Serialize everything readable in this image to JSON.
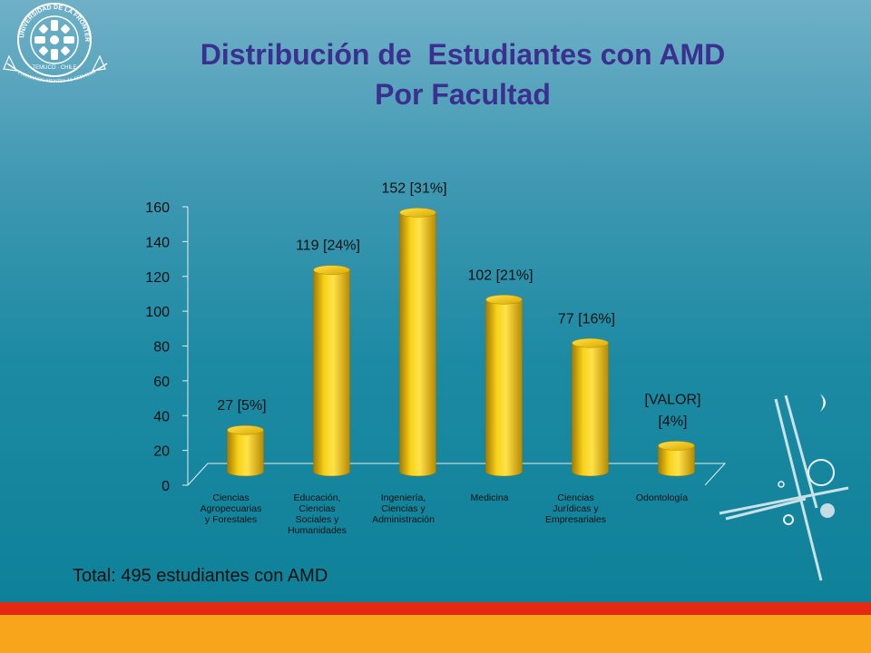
{
  "slide": {
    "title_line1": "Distribución de  Estudiantes con AMD",
    "title_line2": "Por Facultad",
    "total_text": "Total: 495 estudiantes con AMD",
    "logo_text_top": "UNIVERSIDAD DE LA FRONTERA",
    "logo_text_center": "TEMUCO · CHILE",
    "logo_text_bottom": "FORMANDO MENTES AL SERVICIO"
  },
  "colors": {
    "title": "#3b2f8f",
    "bar": "#f2c200",
    "footer_red": "#e52a12",
    "footer_orange": "#f8a51b"
  },
  "chart_data": {
    "type": "bar",
    "title": "",
    "xlabel": "",
    "ylabel": "",
    "ylim": [
      0,
      160
    ],
    "yticks": [
      0,
      20,
      40,
      60,
      80,
      100,
      120,
      140,
      160
    ],
    "categories": [
      [
        "Ciencias",
        "Agropecuarias",
        "y Forestales"
      ],
      [
        "Educación,",
        "Ciencias",
        "Sociales y",
        "Humanidades"
      ],
      [
        "Ingeniería,",
        "Ciencias y",
        "Administración"
      ],
      [
        "Medicina"
      ],
      [
        "Ciencias",
        "Jurídicas y",
        "Empresariales"
      ],
      [
        "Odontología"
      ]
    ],
    "values": [
      27,
      119,
      152,
      102,
      77,
      18
    ],
    "data_labels": [
      [
        "27 [5%]"
      ],
      [
        "119 [24%]"
      ],
      [
        "152 [31%]"
      ],
      [
        "102 [21%]"
      ],
      [
        "77 [16%]"
      ],
      [
        "[VALOR]",
        "[4%]"
      ]
    ],
    "style": "3d-cylinder"
  }
}
